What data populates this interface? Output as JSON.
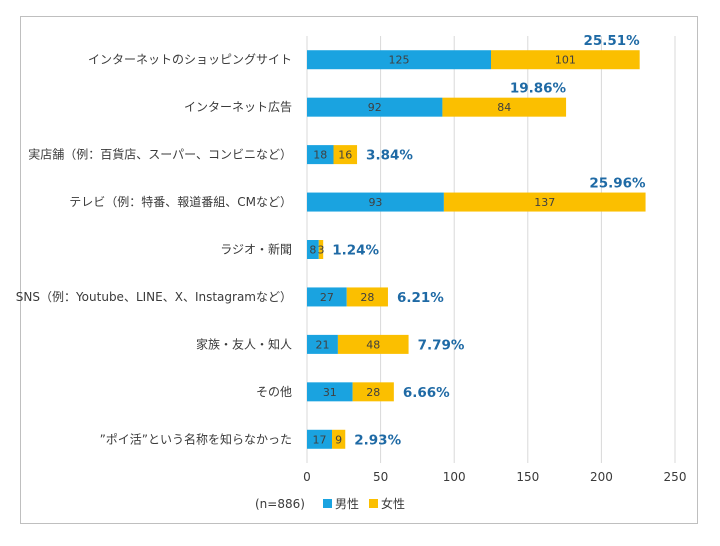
{
  "chart_data": {
    "type": "bar",
    "orientation": "horizontal",
    "stacked": true,
    "categories": [
      "インターネットのショッピングサイト",
      "インターネット広告",
      "実店舗（例：百貨店、スーパー、コンビニなど）",
      "テレビ（例：特番、報道番組、CMなど）",
      "ラジオ・新聞",
      "SNS（例：Youtube、LINE、X、Instagramなど）",
      "家族・友人・知人",
      "その他",
      "”ポイ活”という名称を知らなかった"
    ],
    "series": [
      {
        "name": "男性",
        "color": "#1aa3e0",
        "values": [
          125,
          92,
          18,
          93,
          8,
          27,
          21,
          31,
          17
        ]
      },
      {
        "name": "女性",
        "color": "#fbbf00",
        "values": [
          101,
          84,
          16,
          137,
          3,
          28,
          48,
          28,
          9
        ]
      }
    ],
    "percent_labels": [
      "25.51%",
      "19.86%",
      "3.84%",
      "25.96%",
      "1.24%",
      "6.21%",
      "7.79%",
      "6.66%",
      "2.93%"
    ],
    "xlim": [
      0,
      250
    ],
    "xticks": [
      0,
      50,
      100,
      150,
      200,
      250
    ],
    "grid": true,
    "legend_position": "bottom",
    "note": "(n=886)",
    "percent_color": "#1f6aa5"
  }
}
